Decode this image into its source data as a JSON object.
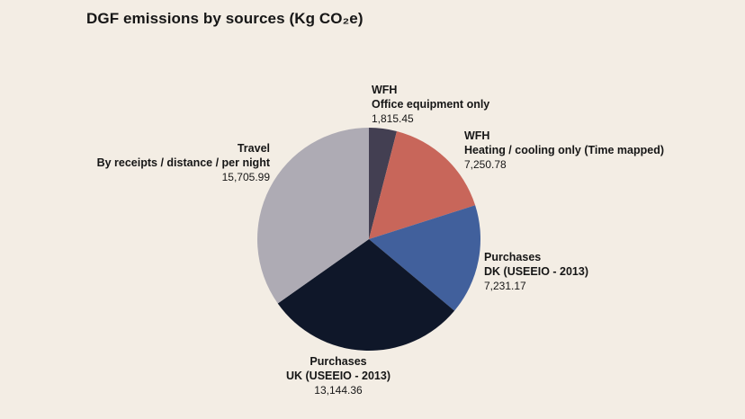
{
  "chart_data": {
    "type": "pie",
    "title": "DGF emissions by sources (Kg CO₂e)",
    "slices": [
      {
        "title": "WFH",
        "subtitle": "Office equipment only",
        "value": 1815.45,
        "value_label": "1,815.45",
        "color": "#433f52"
      },
      {
        "title": "WFH",
        "subtitle": "Heating / cooling only (Time mapped)",
        "value": 7250.78,
        "value_label": "7,250.78",
        "color": "#c8665a"
      },
      {
        "title": "Purchases",
        "subtitle": "DK (USEEIO - 2013)",
        "value": 7231.17,
        "value_label": "7,231.17",
        "color": "#41609c"
      },
      {
        "title": "Purchases",
        "subtitle": "UK (USEEIO - 2013)",
        "value": 13144.36,
        "value_label": "13,144.36",
        "color": "#0f1729"
      },
      {
        "title": "Travel",
        "subtitle": "By receipts / distance / per night",
        "value": 15705.99,
        "value_label": "15,705.99",
        "color": "#aeabb4"
      }
    ]
  }
}
